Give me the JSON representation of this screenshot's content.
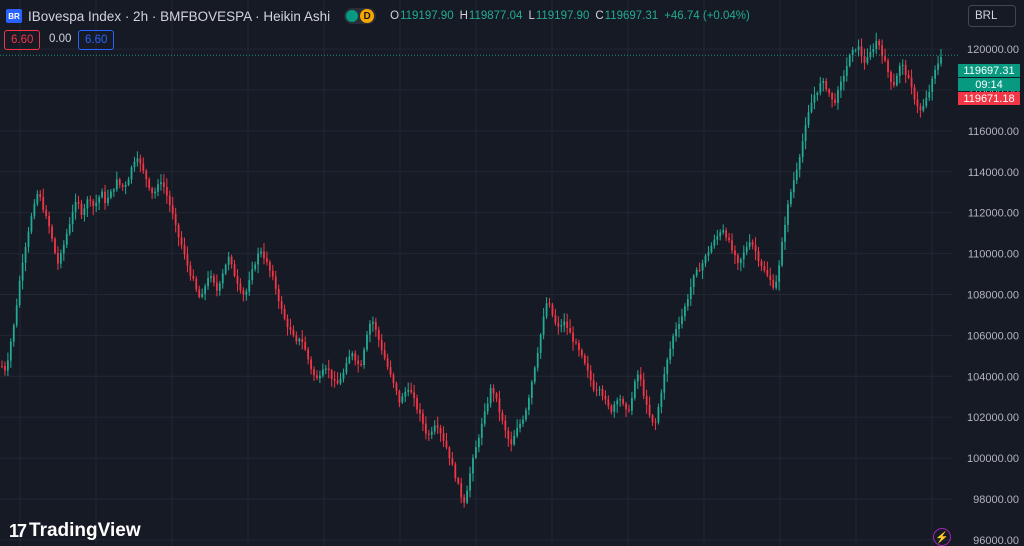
{
  "header": {
    "title": "IBovespa Index · 2h · BMFBOVESPA · Heikin Ashi",
    "toggle_label": "D",
    "ohlc": [
      {
        "k": "O",
        "v": "119197.90"
      },
      {
        "k": "H",
        "v": "119877.04"
      },
      {
        "k": "L",
        "v": "119197.90"
      },
      {
        "k": "C",
        "v": "119697.31"
      },
      {
        "k": "",
        "v": "+46.74 (+0.04%)"
      }
    ]
  },
  "indicators": {
    "sell": "6.60",
    "spread": "0.00",
    "buy": "6.60"
  },
  "currency": "BRL",
  "price_labels": {
    "last": "119697.31",
    "countdown": "09:14",
    "other": "119671.18"
  },
  "brand": {
    "logo_text": "TradingView",
    "logo_mark": "17"
  },
  "colors": {
    "bg": "#161a25",
    "up": "#22ab94",
    "down": "#f23645",
    "grid": "#232734",
    "axis_text": "#b2b5be"
  },
  "chart_data": {
    "type": "candlestick",
    "style": "Heikin Ashi",
    "symbol": "IBovespa Index",
    "interval": "2h",
    "y_ticks": [
      96000,
      98000,
      100000,
      102000,
      104000,
      106000,
      108000,
      110000,
      112000,
      114000,
      116000,
      118000,
      120000
    ],
    "y_tick_labels": [
      "96000.00",
      "98000.00",
      "100000.00",
      "102000.00",
      "104000.00",
      "106000.00",
      "108000.00",
      "110000.00",
      "112000.00",
      "114000.00",
      "116000.00",
      "118000.00",
      "120000.00"
    ],
    "ylim": [
      95700,
      122400
    ],
    "last_price": 119697.31,
    "other_price": 119671.18,
    "path": [
      104500,
      104300,
      105500,
      106500,
      108000,
      109500,
      110500,
      111500,
      112200,
      113000,
      112500,
      111800,
      111200,
      110300,
      109500,
      110000,
      110800,
      111500,
      112300,
      112500,
      112000,
      112400,
      112800,
      112300,
      112600,
      113000,
      112500,
      112800,
      113200,
      113600,
      113200,
      113400,
      113800,
      114500,
      114800,
      114200,
      113800,
      113300,
      112900,
      113200,
      113600,
      113100,
      112500,
      111800,
      111000,
      110500,
      109800,
      109200,
      108700,
      108100,
      107700,
      108400,
      109000,
      108600,
      108200,
      108800,
      109400,
      109800,
      109200,
      108700,
      108300,
      107900,
      108500,
      109200,
      109800,
      110200,
      109800,
      109300,
      108800,
      108200,
      107400,
      106800,
      106400,
      106000,
      105600,
      106000,
      105400,
      104800,
      104200,
      103800,
      104200,
      104600,
      104300,
      103900,
      103500,
      103900,
      104200,
      104800,
      105200,
      104800,
      104400,
      105400,
      106400,
      106800,
      106200,
      105600,
      105000,
      104400,
      103800,
      103300,
      102700,
      103100,
      103500,
      103100,
      102600,
      102100,
      101600,
      101000,
      101400,
      101800,
      101400,
      100900,
      100400,
      99700,
      99100,
      98400,
      97800,
      98600,
      99600,
      100400,
      101200,
      101900,
      102700,
      103500,
      103000,
      102300,
      101600,
      101000,
      100600,
      101200,
      101600,
      102000,
      102600,
      103600,
      104600,
      105600,
      106700,
      107700,
      107200,
      106600,
      106300,
      106700,
      106400,
      106000,
      105600,
      105200,
      104800,
      104300,
      103800,
      103300,
      103600,
      103100,
      102600,
      102300,
      102700,
      103100,
      102600,
      102200,
      102600,
      103600,
      104200,
      103400,
      102500,
      101900,
      101500,
      102500,
      103600,
      104600,
      105400,
      106200,
      106600,
      107000,
      107600,
      108300,
      108900,
      109200,
      109500,
      109900,
      110300,
      110600,
      110900,
      111300,
      110900,
      110400,
      109900,
      109400,
      109800,
      110300,
      110700,
      110300,
      109800,
      109400,
      109000,
      108700,
      108400,
      108900,
      110400,
      111800,
      112800,
      113600,
      114400,
      115300,
      116200,
      117100,
      117700,
      118000,
      118400,
      118200,
      117800,
      117300,
      117800,
      118400,
      119000,
      119600,
      119900,
      120200,
      119700,
      119300,
      119700,
      120100,
      120500,
      119900,
      119300,
      118700,
      118200,
      118800,
      119300,
      118900,
      118400,
      117800,
      117300,
      116900,
      117400,
      117900,
      118600,
      119200,
      119700
    ]
  }
}
